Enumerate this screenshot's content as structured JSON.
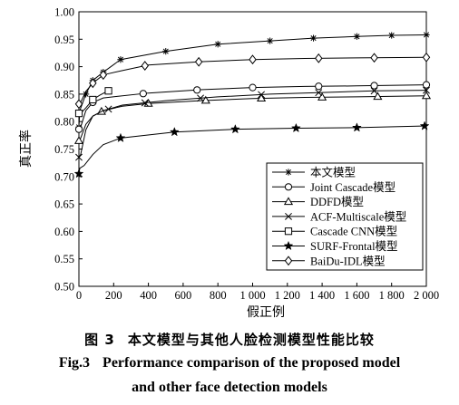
{
  "chart_data": {
    "type": "line",
    "xlabel": "假正例",
    "ylabel": "真正率",
    "xlim": [
      0,
      2000
    ],
    "ylim": [
      0.5,
      1.0
    ],
    "x_ticks": [
      "0",
      "200",
      "400",
      "600",
      "800",
      "1 000",
      "1 200",
      "1 400",
      "1 600",
      "1 800",
      "2 000"
    ],
    "y_ticks": [
      "0.50",
      "0.55",
      "0.60",
      "0.65",
      "0.70",
      "0.75",
      "0.80",
      "0.85",
      "0.90",
      "0.95",
      "1.00"
    ],
    "legend_position": "bottom-right",
    "series": [
      {
        "name": "本文模型",
        "marker": "asterisk",
        "points": [
          [
            0,
            0.79
          ],
          [
            5,
            0.82
          ],
          [
            40,
            0.85
          ],
          [
            80,
            0.875
          ],
          [
            140,
            0.89
          ],
          [
            240,
            0.913
          ],
          [
            500,
            0.928
          ],
          [
            800,
            0.941
          ],
          [
            1100,
            0.947
          ],
          [
            1350,
            0.952
          ],
          [
            1600,
            0.955
          ],
          [
            1800,
            0.957
          ],
          [
            2000,
            0.958
          ]
        ],
        "marker_x": [
          0,
          40,
          80,
          140,
          240,
          500,
          800,
          1100,
          1350,
          1600,
          1800,
          2000
        ]
      },
      {
        "name": "Joint Cascade模型",
        "marker": "circle",
        "points": [
          [
            0,
            0.786
          ],
          [
            10,
            0.79
          ],
          [
            40,
            0.82
          ],
          [
            80,
            0.835
          ],
          [
            140,
            0.843
          ],
          [
            220,
            0.846
          ],
          [
            400,
            0.852
          ],
          [
            700,
            0.858
          ],
          [
            1000,
            0.862
          ],
          [
            1300,
            0.864
          ],
          [
            1600,
            0.865
          ],
          [
            2000,
            0.867
          ]
        ],
        "marker_x": [
          0,
          80,
          370,
          680,
          1000,
          1380,
          1700,
          2000
        ]
      },
      {
        "name": "DDFD模型",
        "marker": "triangle",
        "points": [
          [
            0,
            0.765
          ],
          [
            10,
            0.77
          ],
          [
            40,
            0.795
          ],
          [
            80,
            0.81
          ],
          [
            140,
            0.82
          ],
          [
            250,
            0.828
          ],
          [
            400,
            0.833
          ],
          [
            700,
            0.838
          ],
          [
            1000,
            0.842
          ],
          [
            1300,
            0.844
          ],
          [
            1600,
            0.845
          ],
          [
            2000,
            0.847
          ]
        ],
        "marker_x": [
          0,
          130,
          400,
          730,
          1050,
          1400,
          1720,
          2000
        ]
      },
      {
        "name": "ACF-Multiscale模型",
        "marker": "x",
        "points": [
          [
            0,
            0.735
          ],
          [
            10,
            0.74
          ],
          [
            40,
            0.785
          ],
          [
            80,
            0.81
          ],
          [
            140,
            0.82
          ],
          [
            250,
            0.83
          ],
          [
            500,
            0.838
          ],
          [
            800,
            0.845
          ],
          [
            1100,
            0.85
          ],
          [
            1400,
            0.853
          ],
          [
            1700,
            0.856
          ],
          [
            2000,
            0.857
          ]
        ],
        "marker_x": [
          0,
          170,
          380,
          700,
          1050,
          1380,
          1700,
          2000
        ]
      },
      {
        "name": "Cascade CNN模型",
        "marker": "square",
        "points": [
          [
            0,
            0.815
          ],
          [
            10,
            0.815
          ],
          [
            40,
            0.825
          ],
          [
            80,
            0.84
          ],
          [
            120,
            0.848
          ],
          [
            150,
            0.853
          ],
          [
            170,
            0.856
          ]
        ],
        "marker_x": [
          0,
          80,
          170
        ]
      },
      {
        "name": "SURF-Frontal模型",
        "marker": "star",
        "points": [
          [
            0,
            0.705
          ],
          [
            5,
            0.715
          ],
          [
            30,
            0.72
          ],
          [
            80,
            0.74
          ],
          [
            140,
            0.758
          ],
          [
            240,
            0.77
          ],
          [
            550,
            0.781
          ],
          [
            900,
            0.786
          ],
          [
            1250,
            0.788
          ],
          [
            1600,
            0.789
          ],
          [
            2000,
            0.792
          ]
        ],
        "marker_x": [
          0,
          240,
          550,
          900,
          1250,
          1600,
          1990
        ]
      },
      {
        "name": "BaiDu-IDL模型",
        "marker": "diamond",
        "points": [
          [
            0,
            0.832
          ],
          [
            10,
            0.835
          ],
          [
            40,
            0.855
          ],
          [
            80,
            0.87
          ],
          [
            140,
            0.885
          ],
          [
            250,
            0.893
          ],
          [
            400,
            0.903
          ],
          [
            700,
            0.909
          ],
          [
            1000,
            0.913
          ],
          [
            1300,
            0.915
          ],
          [
            1600,
            0.916
          ],
          [
            2000,
            0.917
          ]
        ],
        "marker_x": [
          0,
          80,
          140,
          380,
          690,
          1000,
          1380,
          1700,
          2000
        ]
      }
    ]
  },
  "caption": {
    "cn_label": "图 3",
    "cn_text": "本文模型与其他人脸检测模型性能比较",
    "en_label": "Fig.3",
    "en_text_line1": "Performance comparison of the proposed model",
    "en_text_line2": "and other face detection models"
  }
}
